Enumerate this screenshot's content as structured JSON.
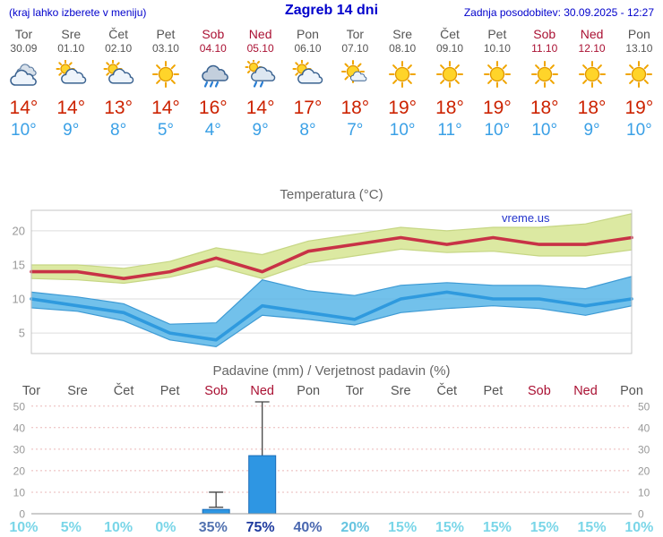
{
  "header": {
    "left_note": "(kraj lahko izberete v meniju)",
    "title": "Zagreb 14 dni",
    "updated": "Zadnja posodobitev: 30.09.2025 - 12:27"
  },
  "watermark": "vreme.us",
  "colors": {
    "header_blue": "#0000cc",
    "temp_max_red": "#cc2200",
    "temp_min_blue": "#3aa0e6",
    "weekend_red": "#aa1133",
    "weekday_gray": "#555555"
  },
  "days": [
    {
      "name": "Tor",
      "date": "30.09",
      "icon": "cloudy",
      "tmax": "14°",
      "tmin": "10°",
      "weekend": false
    },
    {
      "name": "Sre",
      "date": "01.10",
      "icon": "partly",
      "tmax": "14°",
      "tmin": "9°",
      "weekend": false
    },
    {
      "name": "Čet",
      "date": "02.10",
      "icon": "partly",
      "tmax": "13°",
      "tmin": "8°",
      "weekend": false
    },
    {
      "name": "Pet",
      "date": "03.10",
      "icon": "sunny",
      "tmax": "14°",
      "tmin": "5°",
      "weekend": false
    },
    {
      "name": "Sob",
      "date": "04.10",
      "icon": "rain",
      "tmax": "16°",
      "tmin": "4°",
      "weekend": true
    },
    {
      "name": "Ned",
      "date": "05.10",
      "icon": "sunshower",
      "tmax": "14°",
      "tmin": "9°",
      "weekend": true
    },
    {
      "name": "Pon",
      "date": "06.10",
      "icon": "partly",
      "tmax": "17°",
      "tmin": "8°",
      "weekend": false
    },
    {
      "name": "Tor",
      "date": "07.10",
      "icon": "mostlysunny",
      "tmax": "18°",
      "tmin": "7°",
      "weekend": false
    },
    {
      "name": "Sre",
      "date": "08.10",
      "icon": "sunny",
      "tmax": "19°",
      "tmin": "10°",
      "weekend": false
    },
    {
      "name": "Čet",
      "date": "09.10",
      "icon": "sunny",
      "tmax": "18°",
      "tmin": "11°",
      "weekend": false
    },
    {
      "name": "Pet",
      "date": "10.10",
      "icon": "sunny",
      "tmax": "19°",
      "tmin": "10°",
      "weekend": false
    },
    {
      "name": "Sob",
      "date": "11.10",
      "icon": "sunny",
      "tmax": "18°",
      "tmin": "10°",
      "weekend": true
    },
    {
      "name": "Ned",
      "date": "12.10",
      "icon": "sunny",
      "tmax": "18°",
      "tmin": "9°",
      "weekend": true
    },
    {
      "name": "Pon",
      "date": "13.10",
      "icon": "sunny",
      "tmax": "19°",
      "tmin": "10°",
      "weekend": false
    }
  ],
  "chart_data": [
    {
      "type": "line",
      "title": "Temperatura (°C)",
      "categories": [
        "Tor",
        "Sre",
        "Čet",
        "Pet",
        "Sob",
        "Ned",
        "Pon",
        "Tor",
        "Sre",
        "Čet",
        "Pet",
        "Sob",
        "Ned",
        "Pon"
      ],
      "ylim": [
        2,
        23
      ],
      "yticks": [
        5,
        10,
        15,
        20
      ],
      "series": [
        {
          "name": "max_temperature",
          "color": "#c83246",
          "band_color": "#dce9a2",
          "values": [
            14,
            14,
            13,
            14,
            16,
            14,
            17,
            18,
            19,
            18,
            19,
            18,
            18,
            19
          ],
          "band_upper": [
            15,
            15,
            14.5,
            15.5,
            17.5,
            16.5,
            18.5,
            19.5,
            20.5,
            20,
            20.5,
            20.5,
            21,
            22.5
          ],
          "band_lower": [
            13,
            12.8,
            12.3,
            13.2,
            14.8,
            13,
            15.3,
            16.3,
            17.3,
            16.8,
            17,
            16.3,
            16.3,
            17.2
          ]
        },
        {
          "name": "min_temperature",
          "color": "#2f9ade",
          "band_color": "#59b6e8",
          "values": [
            10,
            9,
            8,
            5,
            4,
            9,
            8,
            7,
            10,
            11,
            10,
            10,
            9,
            10
          ],
          "band_upper": [
            11,
            10.3,
            9.3,
            6.3,
            6.5,
            12.8,
            11.2,
            10.5,
            12,
            12.4,
            12,
            12,
            11.5,
            13.3
          ],
          "band_lower": [
            8.7,
            8.2,
            6.8,
            4,
            3,
            7.6,
            7,
            6.2,
            8,
            8.6,
            9,
            8.6,
            7.6,
            9
          ]
        }
      ]
    },
    {
      "type": "bar",
      "title": "Padavine (mm) / Verjetnost padavin (%)",
      "categories": [
        "Tor",
        "Sre",
        "Čet",
        "Pet",
        "Sob",
        "Ned",
        "Pon",
        "Tor",
        "Sre",
        "Čet",
        "Pet",
        "Sob",
        "Ned",
        "Pon"
      ],
      "ylim": [
        0,
        52
      ],
      "yticks": [
        0,
        10,
        20,
        30,
        40,
        50
      ],
      "bar_color": "#2e96e3",
      "bar_border": "#1a6db8",
      "values": [
        0,
        0,
        0,
        0,
        2,
        27,
        0,
        0,
        0,
        0,
        0,
        0,
        0,
        0
      ],
      "whisker_high": [
        0,
        0,
        0,
        0,
        10,
        52,
        0,
        0,
        0,
        0,
        0,
        0,
        0,
        0
      ],
      "whisker_low": [
        0,
        0,
        0,
        0,
        3,
        5,
        0,
        0,
        0,
        0,
        0,
        0,
        0,
        0
      ],
      "probabilities": [
        {
          "label": "10%",
          "color": "#7ad6e8"
        },
        {
          "label": "5%",
          "color": "#7ad6e8"
        },
        {
          "label": "10%",
          "color": "#7ad6e8"
        },
        {
          "label": "0%",
          "color": "#7ad6e8"
        },
        {
          "label": "35%",
          "color": "#5272b0"
        },
        {
          "label": "75%",
          "color": "#1e3a9e"
        },
        {
          "label": "40%",
          "color": "#4a68b0"
        },
        {
          "label": "20%",
          "color": "#66c4e0"
        },
        {
          "label": "15%",
          "color": "#7ad6e8"
        },
        {
          "label": "15%",
          "color": "#7ad6e8"
        },
        {
          "label": "15%",
          "color": "#7ad6e8"
        },
        {
          "label": "15%",
          "color": "#7ad6e8"
        },
        {
          "label": "15%",
          "color": "#7ad6e8"
        },
        {
          "label": "10%",
          "color": "#7ad6e8"
        }
      ]
    }
  ]
}
